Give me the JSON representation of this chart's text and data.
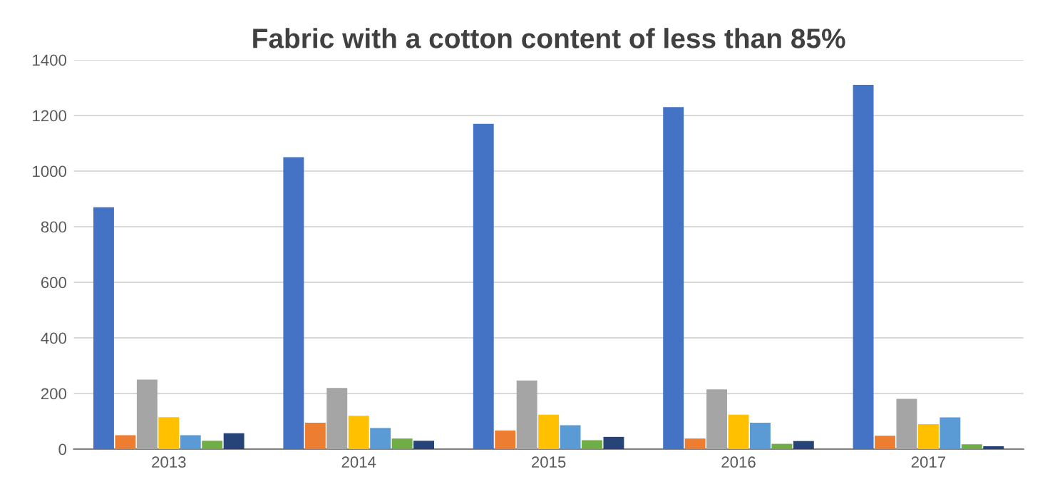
{
  "chart_data": {
    "type": "bar",
    "title": "Fabric with a cotton content of less than 85%",
    "categories": [
      "2013",
      "2014",
      "2015",
      "2016",
      "2017"
    ],
    "series": [
      {
        "color": "#4472c4",
        "values": [
          870,
          1050,
          1170,
          1230,
          1310
        ]
      },
      {
        "color": "#ed7d31",
        "values": [
          50,
          95,
          67,
          38,
          48
        ]
      },
      {
        "color": "#a5a5a5",
        "values": [
          250,
          220,
          247,
          215,
          181
        ]
      },
      {
        "color": "#ffc000",
        "values": [
          115,
          120,
          124,
          124,
          90
        ]
      },
      {
        "color": "#5b9bd5",
        "values": [
          50,
          76,
          86,
          95,
          114
        ]
      },
      {
        "color": "#70ad47",
        "values": [
          30,
          38,
          32,
          19,
          17
        ]
      },
      {
        "color": "#264478",
        "values": [
          57,
          30,
          44,
          29,
          10
        ]
      }
    ],
    "ylim": [
      0,
      1400
    ],
    "yticks": [
      0,
      200,
      400,
      600,
      800,
      1000,
      1200,
      1400
    ],
    "grid": "y"
  }
}
